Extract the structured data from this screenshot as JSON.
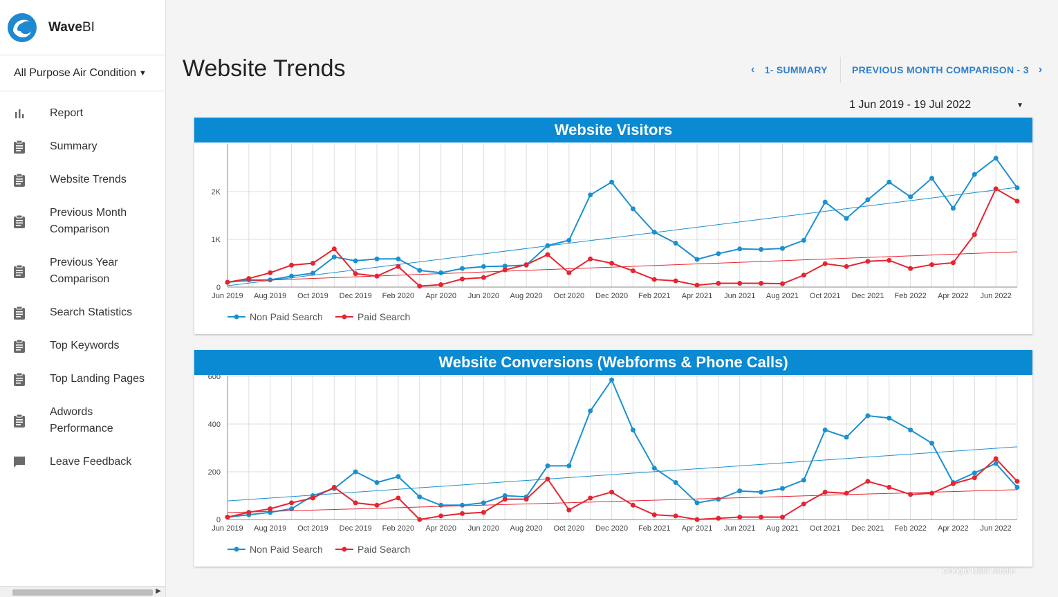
{
  "brand": {
    "name_bold": "Wave",
    "name_light": "BI"
  },
  "client_selector": {
    "value": "All Purpose Air Condition"
  },
  "nav": [
    {
      "label": "Report",
      "icon": "bar-chart-icon"
    },
    {
      "label": "Summary",
      "icon": "clipboard-icon"
    },
    {
      "label": "Website Trends",
      "icon": "clipboard-icon"
    },
    {
      "label": "Previous Month Comparison",
      "icon": "clipboard-icon"
    },
    {
      "label": "Previous Year Comparison",
      "icon": "clipboard-icon"
    },
    {
      "label": "Search Statistics",
      "icon": "clipboard-icon"
    },
    {
      "label": "Top Keywords",
      "icon": "clipboard-icon"
    },
    {
      "label": "Top Landing Pages",
      "icon": "clipboard-icon"
    },
    {
      "label": "Adwords Performance",
      "icon": "clipboard-icon"
    },
    {
      "label": "Leave Feedback",
      "icon": "comment-icon"
    }
  ],
  "page_title": "Website Trends",
  "pager": {
    "prev_label": "1- SUMMARY",
    "next_label": "PREVIOUS MONTH COMPARISON - 3"
  },
  "date_range": "1 Jun 2019 - 19 Jul 2022",
  "watermark": "Google Data Studio",
  "colors": {
    "accent": "#0a8ad3",
    "non_paid": "#1a90d0",
    "paid": "#e52530"
  },
  "chart_data": [
    {
      "type": "line",
      "title": "Website Visitors",
      "x": [
        "Jun 2019",
        "Jul 2019",
        "Aug 2019",
        "Sep 2019",
        "Oct 2019",
        "Nov 2019",
        "Dec 2019",
        "Jan 2020",
        "Feb 2020",
        "Mar 2020",
        "Apr 2020",
        "May 2020",
        "Jun 2020",
        "Jul 2020",
        "Aug 2020",
        "Sep 2020",
        "Oct 2020",
        "Nov 2020",
        "Dec 2020",
        "Jan 2021",
        "Feb 2021",
        "Mar 2021",
        "Apr 2021",
        "May 2021",
        "Jun 2021",
        "Jul 2021",
        "Aug 2021",
        "Sep 2021",
        "Oct 2021",
        "Nov 2021",
        "Dec 2021",
        "Jan 2022",
        "Feb 2022",
        "Mar 2022",
        "Apr 2022",
        "May 2022",
        "Jun 2022",
        "Jul 2022"
      ],
      "x_ticks": [
        "Jun 2019",
        "Aug 2019",
        "Oct 2019",
        "Dec 2019",
        "Feb 2020",
        "Apr 2020",
        "Jun 2020",
        "Aug 2020",
        "Oct 2020",
        "Dec 2020",
        "Feb 2021",
        "Apr 2021",
        "Jun 2021",
        "Aug 2021",
        "Oct 2021",
        "Dec 2021",
        "Feb 2022",
        "Apr 2022",
        "Jun 2022"
      ],
      "y_ticks": [
        0,
        1000,
        2000
      ],
      "y_tick_labels": [
        "0",
        "1K",
        "2K"
      ],
      "ylim": [
        0,
        3000
      ],
      "series": [
        {
          "name": "Non Paid Search",
          "values": [
            100,
            150,
            150,
            230,
            290,
            630,
            550,
            590,
            590,
            350,
            300,
            390,
            430,
            440,
            460,
            870,
            980,
            1930,
            2200,
            1640,
            1150,
            920,
            580,
            700,
            800,
            790,
            810,
            980,
            1780,
            1440,
            1830,
            2200,
            1890,
            2280,
            1650,
            2360,
            2700,
            2080
          ]
        },
        {
          "name": "Paid Search",
          "values": [
            100,
            180,
            300,
            460,
            500,
            800,
            280,
            230,
            430,
            20,
            50,
            170,
            200,
            360,
            470,
            680,
            300,
            590,
            500,
            340,
            160,
            130,
            40,
            80,
            80,
            80,
            70,
            250,
            490,
            430,
            540,
            560,
            390,
            470,
            510,
            1100,
            2060,
            1800
          ]
        }
      ],
      "trendlines": true,
      "legend": "bottom-left"
    },
    {
      "type": "line",
      "title": "Website Conversions (Webforms & Phone Calls)",
      "x": [
        "Jun 2019",
        "Jul 2019",
        "Aug 2019",
        "Sep 2019",
        "Oct 2019",
        "Nov 2019",
        "Dec 2019",
        "Jan 2020",
        "Feb 2020",
        "Mar 2020",
        "Apr 2020",
        "May 2020",
        "Jun 2020",
        "Jul 2020",
        "Aug 2020",
        "Sep 2020",
        "Oct 2020",
        "Nov 2020",
        "Dec 2020",
        "Jan 2021",
        "Feb 2021",
        "Mar 2021",
        "Apr 2021",
        "May 2021",
        "Jun 2021",
        "Jul 2021",
        "Aug 2021",
        "Sep 2021",
        "Oct 2021",
        "Nov 2021",
        "Dec 2021",
        "Jan 2022",
        "Feb 2022",
        "Mar 2022",
        "Apr 2022",
        "May 2022",
        "Jun 2022",
        "Jul 2022"
      ],
      "x_ticks": [
        "Jun 2019",
        "Aug 2019",
        "Oct 2019",
        "Dec 2019",
        "Feb 2020",
        "Apr 2020",
        "Jun 2020",
        "Aug 2020",
        "Oct 2020",
        "Dec 2020",
        "Feb 2021",
        "Apr 2021",
        "Jun 2021",
        "Aug 2021",
        "Oct 2021",
        "Dec 2021",
        "Feb 2022",
        "Apr 2022",
        "Jun 2022"
      ],
      "y_ticks": [
        0,
        200,
        400,
        600
      ],
      "y_tick_labels": [
        "0",
        "200",
        "400",
        "600"
      ],
      "ylim": [
        0,
        600
      ],
      "series": [
        {
          "name": "Non Paid Search",
          "values": [
            10,
            20,
            30,
            45,
            100,
            130,
            200,
            155,
            180,
            95,
            60,
            60,
            70,
            100,
            95,
            225,
            225,
            455,
            585,
            375,
            215,
            155,
            70,
            85,
            120,
            115,
            130,
            165,
            375,
            345,
            435,
            425,
            375,
            320,
            155,
            195,
            235,
            135
          ]
        },
        {
          "name": "Paid Search",
          "values": [
            10,
            30,
            45,
            70,
            90,
            135,
            70,
            60,
            90,
            0,
            15,
            25,
            30,
            85,
            85,
            170,
            40,
            90,
            115,
            60,
            20,
            15,
            0,
            5,
            10,
            10,
            10,
            65,
            115,
            110,
            160,
            135,
            105,
            110,
            150,
            175,
            255,
            160
          ]
        }
      ],
      "trendlines": true,
      "legend": "bottom-left"
    }
  ]
}
